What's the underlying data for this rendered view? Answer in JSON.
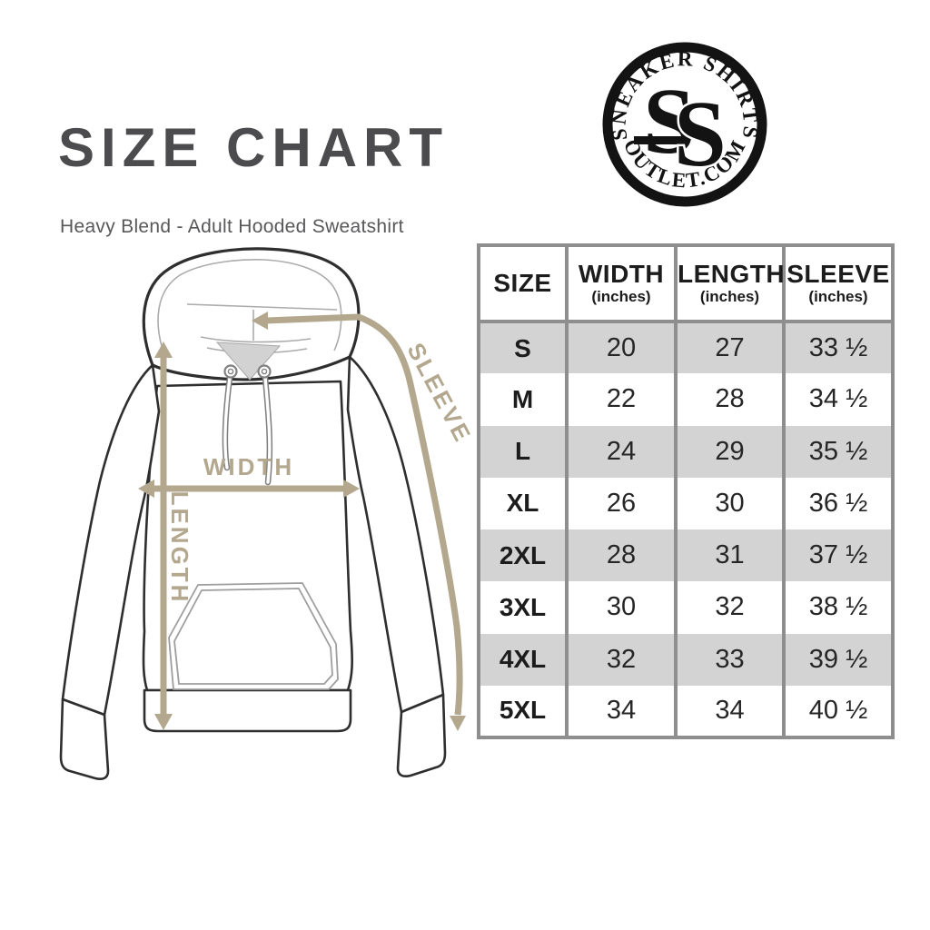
{
  "header": {
    "title": "SIZE CHART",
    "subtitle": "Heavy Blend - Adult Hooded Sweatshirt"
  },
  "logo": {
    "top_text": "SNEAKER SHIRTS",
    "bottom_text": "OUTLET.COM",
    "monogram_letter_1": "S",
    "monogram_letter_2": "S"
  },
  "diagram": {
    "labels": {
      "width": "WIDTH",
      "length": "LENGTH",
      "sleeve": "SLEEVE"
    },
    "colors": {
      "arrow_tan": "#b3a78e",
      "outline_dark": "#2e2e2e",
      "light_line": "#ababab",
      "neck_shade": "#d2d2d2"
    }
  },
  "size_table": {
    "columns": [
      {
        "label": "SIZE",
        "sub": ""
      },
      {
        "label": "WIDTH",
        "sub": "(inches)"
      },
      {
        "label": "LENGTH",
        "sub": "(inches)"
      },
      {
        "label": "SLEEVE",
        "sub": "(inches)"
      }
    ],
    "rows": [
      {
        "size": "S",
        "width": "20",
        "length": "27",
        "sleeve": "33 ½"
      },
      {
        "size": "M",
        "width": "22",
        "length": "28",
        "sleeve": "34 ½"
      },
      {
        "size": "L",
        "width": "24",
        "length": "29",
        "sleeve": "35 ½"
      },
      {
        "size": "XL",
        "width": "26",
        "length": "30",
        "sleeve": "36 ½"
      },
      {
        "size": "2XL",
        "width": "28",
        "length": "31",
        "sleeve": "37 ½"
      },
      {
        "size": "3XL",
        "width": "30",
        "length": "32",
        "sleeve": "38 ½"
      },
      {
        "size": "4XL",
        "width": "32",
        "length": "33",
        "sleeve": "39 ½"
      },
      {
        "size": "5XL",
        "width": "34",
        "length": "34",
        "sleeve": "40 ½"
      }
    ],
    "colors": {
      "border": "#8e8e8e",
      "row_shade": "#d3d3d3",
      "text": "#1c1c1c"
    }
  }
}
